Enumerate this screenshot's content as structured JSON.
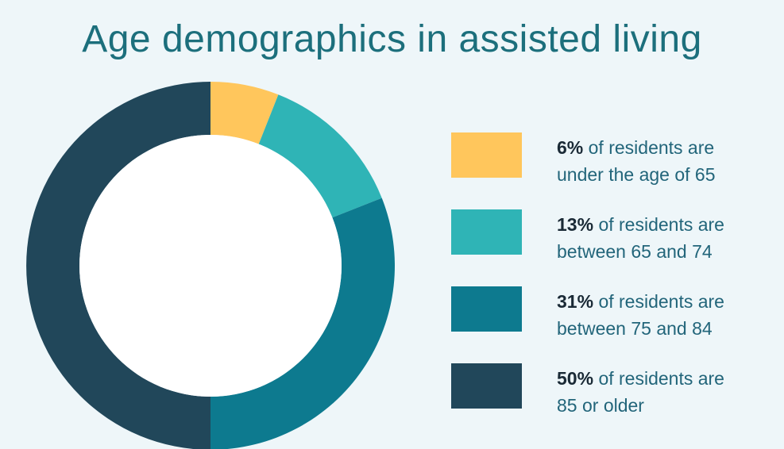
{
  "chart_data": {
    "type": "pie",
    "variant": "donut",
    "title": "Age demographics in assisted living",
    "slices": [
      {
        "label": "under the age of 65",
        "value": 6,
        "pct_label": "6%",
        "text": "of residents are",
        "color": "#ffc65c"
      },
      {
        "label": "between 65 and 74",
        "value": 13,
        "pct_label": "13%",
        "text": "of residents are",
        "color": "#2fb4b6"
      },
      {
        "label": "between 75 and 84",
        "value": 31,
        "pct_label": "31%",
        "text": "of residents are",
        "color": "#0d7a8f"
      },
      {
        "label": "85 or older",
        "value": 50,
        "pct_label": "50%",
        "text": "of residents are",
        "color": "#21475a"
      }
    ]
  }
}
